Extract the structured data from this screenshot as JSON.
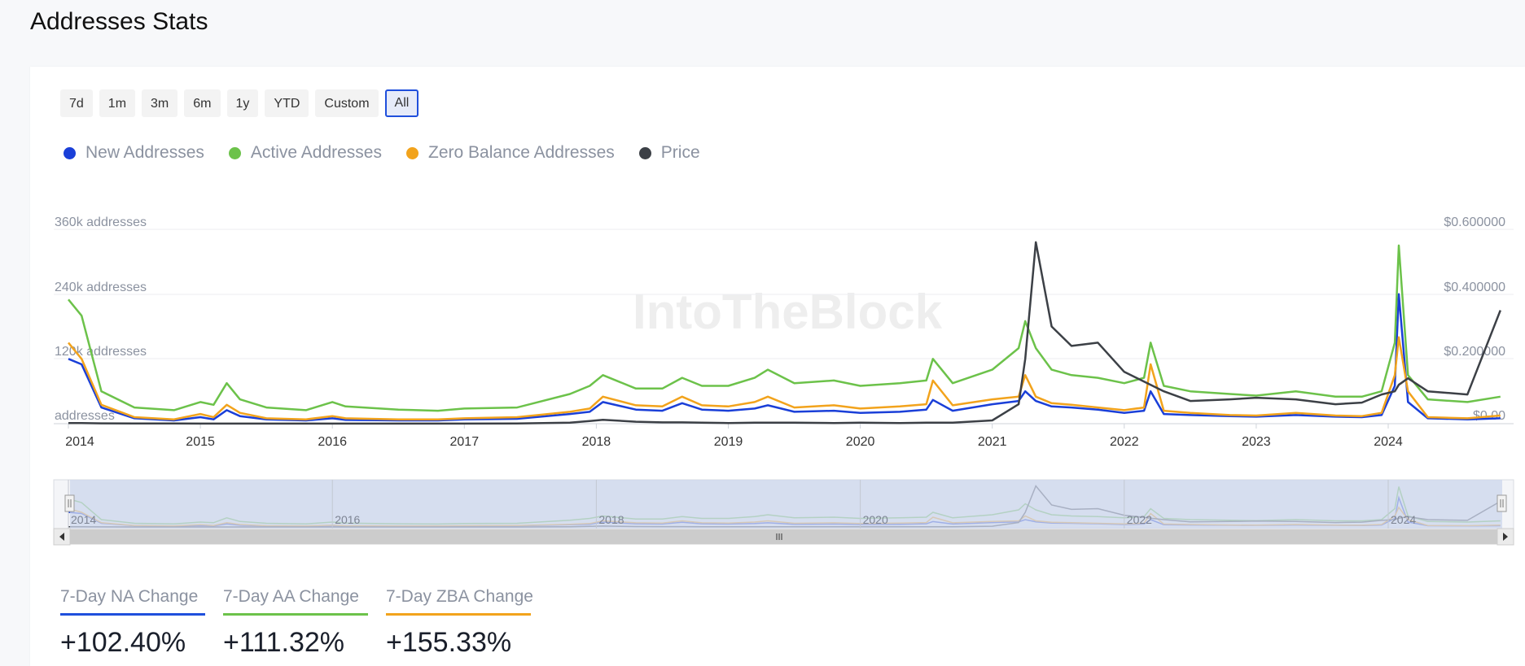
{
  "page": {
    "title": "Addresses Stats"
  },
  "range_buttons": [
    "7d",
    "1m",
    "3m",
    "6m",
    "1y",
    "YTD",
    "Custom",
    "All"
  ],
  "range_selected": "All",
  "watermark": "IntoTheBlock",
  "colors": {
    "new": "#1a3fd8",
    "active": "#6cc24a",
    "zero": "#f2a31c",
    "price": "#3c4046",
    "accent": "#1f4fdc"
  },
  "chart_data": {
    "type": "line",
    "title": "Addresses Stats",
    "x": [
      2014.0,
      2014.1,
      2014.25,
      2014.5,
      2014.8,
      2015.0,
      2015.1,
      2015.2,
      2015.3,
      2015.5,
      2015.8,
      2016.0,
      2016.1,
      2016.5,
      2016.8,
      2017.0,
      2017.4,
      2017.8,
      2017.95,
      2018.05,
      2018.3,
      2018.5,
      2018.65,
      2018.8,
      2019.0,
      2019.2,
      2019.3,
      2019.5,
      2019.8,
      2020.0,
      2020.3,
      2020.5,
      2020.55,
      2020.7,
      2021.0,
      2021.2,
      2021.25,
      2021.33,
      2021.45,
      2021.6,
      2021.8,
      2022.0,
      2022.15,
      2022.2,
      2022.3,
      2022.5,
      2022.8,
      2023.0,
      2023.3,
      2023.6,
      2023.8,
      2023.95,
      2024.05,
      2024.08,
      2024.15,
      2024.3,
      2024.6,
      2024.85
    ],
    "series": [
      {
        "name": "New Addresses",
        "axis": "left",
        "values": [
          120000,
          110000,
          30000,
          10000,
          6000,
          12000,
          8000,
          25000,
          14000,
          8000,
          6000,
          10000,
          7000,
          6000,
          6000,
          8000,
          9000,
          18000,
          22000,
          40000,
          26000,
          24000,
          38000,
          26000,
          24000,
          28000,
          34000,
          22000,
          24000,
          20000,
          22000,
          26000,
          44000,
          24000,
          36000,
          42000,
          60000,
          42000,
          32000,
          30000,
          26000,
          20000,
          24000,
          60000,
          18000,
          16000,
          14000,
          13000,
          16000,
          13000,
          12000,
          16000,
          70000,
          240000,
          40000,
          10000,
          8000,
          10000
        ]
      },
      {
        "name": "Active Addresses",
        "axis": "left",
        "values": [
          230000,
          200000,
          60000,
          30000,
          25000,
          40000,
          35000,
          75000,
          45000,
          30000,
          25000,
          40000,
          32000,
          26000,
          24000,
          28000,
          30000,
          55000,
          70000,
          90000,
          65000,
          65000,
          85000,
          70000,
          70000,
          85000,
          100000,
          75000,
          80000,
          70000,
          75000,
          80000,
          120000,
          75000,
          100000,
          140000,
          190000,
          140000,
          100000,
          90000,
          85000,
          75000,
          85000,
          150000,
          70000,
          60000,
          55000,
          52000,
          60000,
          50000,
          50000,
          60000,
          150000,
          330000,
          90000,
          45000,
          40000,
          50000
        ]
      },
      {
        "name": "Zero Balance Addresses",
        "axis": "left",
        "values": [
          150000,
          120000,
          35000,
          12000,
          8000,
          18000,
          12000,
          35000,
          20000,
          10000,
          8000,
          14000,
          10000,
          8000,
          8000,
          10000,
          12000,
          22000,
          28000,
          50000,
          34000,
          32000,
          50000,
          34000,
          32000,
          40000,
          50000,
          30000,
          34000,
          28000,
          32000,
          36000,
          80000,
          34000,
          45000,
          50000,
          90000,
          50000,
          38000,
          35000,
          30000,
          25000,
          30000,
          110000,
          24000,
          20000,
          16000,
          15000,
          20000,
          15000,
          14000,
          20000,
          90000,
          160000,
          60000,
          12000,
          10000,
          15000
        ]
      },
      {
        "name": "Price",
        "axis": "right",
        "values": [
          0.002,
          0.002,
          0.001,
          0.0005,
          0.0004,
          0.0003,
          0.0003,
          0.0003,
          0.0003,
          0.0002,
          0.0002,
          0.0002,
          0.0002,
          0.0002,
          0.0002,
          0.0003,
          0.0005,
          0.003,
          0.008,
          0.012,
          0.006,
          0.004,
          0.004,
          0.003,
          0.002,
          0.003,
          0.003,
          0.003,
          0.002,
          0.003,
          0.002,
          0.003,
          0.003,
          0.003,
          0.01,
          0.06,
          0.2,
          0.56,
          0.3,
          0.24,
          0.25,
          0.16,
          0.13,
          0.12,
          0.1,
          0.07,
          0.075,
          0.08,
          0.075,
          0.06,
          0.065,
          0.09,
          0.1,
          0.12,
          0.14,
          0.1,
          0.09,
          0.35
        ]
      }
    ],
    "y_left": {
      "ylim": [
        0,
        360000
      ],
      "tick_labels": [
        "360k addresses",
        "240k addresses",
        "120k addresses",
        "addresses"
      ]
    },
    "y_right": {
      "ylim": [
        0,
        0.6
      ],
      "tick_labels": [
        "$0.600000",
        "$0.400000",
        "$0.200000",
        "$0.00"
      ]
    },
    "x_tick_labels": [
      "2014",
      "2015",
      "2016",
      "2017",
      "2018",
      "2019",
      "2020",
      "2021",
      "2022",
      "2023",
      "2024"
    ],
    "navigator_tick_labels": [
      "2014",
      "2016",
      "2018",
      "2020",
      "2022",
      "2024"
    ],
    "legend": [
      "New Addresses",
      "Active Addresses",
      "Zero Balance Addresses",
      "Price"
    ],
    "legend_position": "top-left",
    "grid": true
  },
  "stats": [
    {
      "label": "7-Day NA Change",
      "value": "+102.40%",
      "color": "#1f4fdc"
    },
    {
      "label": "7-Day AA Change",
      "value": "+111.32%",
      "color": "#6cc24a"
    },
    {
      "label": "7-Day ZBA Change",
      "value": "+155.33%",
      "color": "#f2a31c"
    }
  ]
}
